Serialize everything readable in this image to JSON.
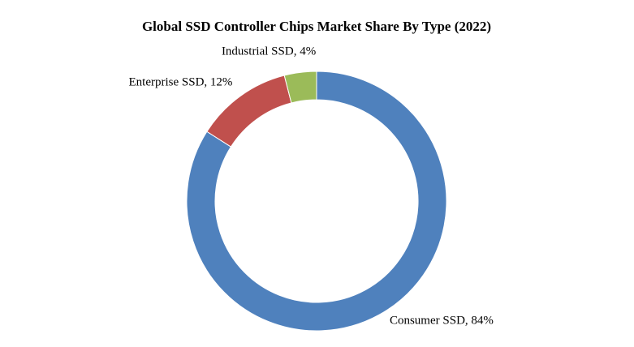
{
  "chart_data": {
    "type": "pie",
    "donut": true,
    "title": "Global SSD Controller Chips Market Share By Type (2022)",
    "slices": [
      {
        "name": "Consumer SSD",
        "value": 84,
        "label": "Consumer SSD, 84%",
        "color": "#4F81BD"
      },
      {
        "name": "Enterprise SSD",
        "value": 12,
        "label": "Enterprise SSD, 12%",
        "color": "#C0504D"
      },
      {
        "name": "Industrial SSD",
        "value": 4,
        "label": "Industrial SSD, 4%",
        "color": "#9BBB59"
      }
    ],
    "start_angle_deg": 0,
    "direction": "clockwise",
    "legend": "none"
  }
}
